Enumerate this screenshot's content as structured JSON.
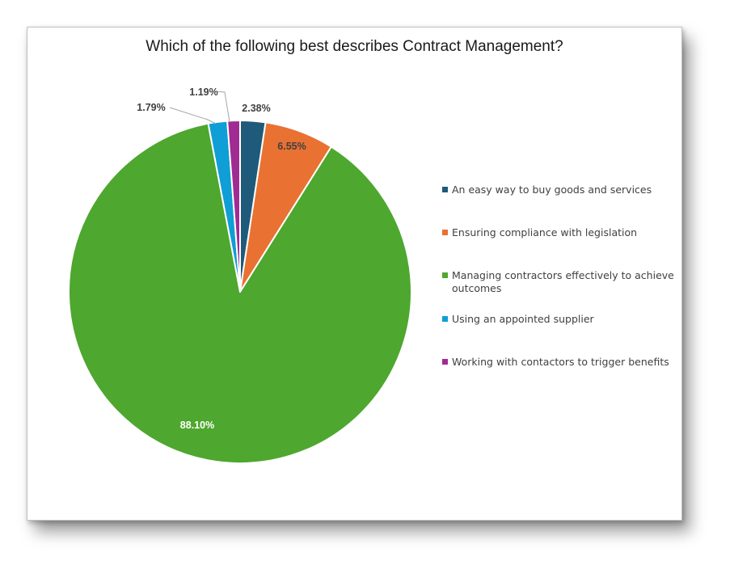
{
  "chart_data": {
    "type": "pie",
    "title": "Which of the following best describes Contract Management?",
    "categories": [
      "An easy way to buy goods and services",
      "Ensuring compliance with legislation",
      "Managing contractors effectively to achieve outcomes",
      "Using an appointed supplier",
      "Working with contactors to trigger benefits"
    ],
    "values": [
      2.38,
      6.55,
      88.1,
      1.79,
      1.19
    ],
    "data_labels": [
      "2.38%",
      "6.55%",
      "88.10%",
      "1.79%",
      "1.19%"
    ],
    "colors": [
      "#1f5a7a",
      "#e97132",
      "#4ea72e",
      "#0f9ed5",
      "#a02b93"
    ],
    "legend_position": "right",
    "start_angle": "12 o'clock, clockwise"
  }
}
